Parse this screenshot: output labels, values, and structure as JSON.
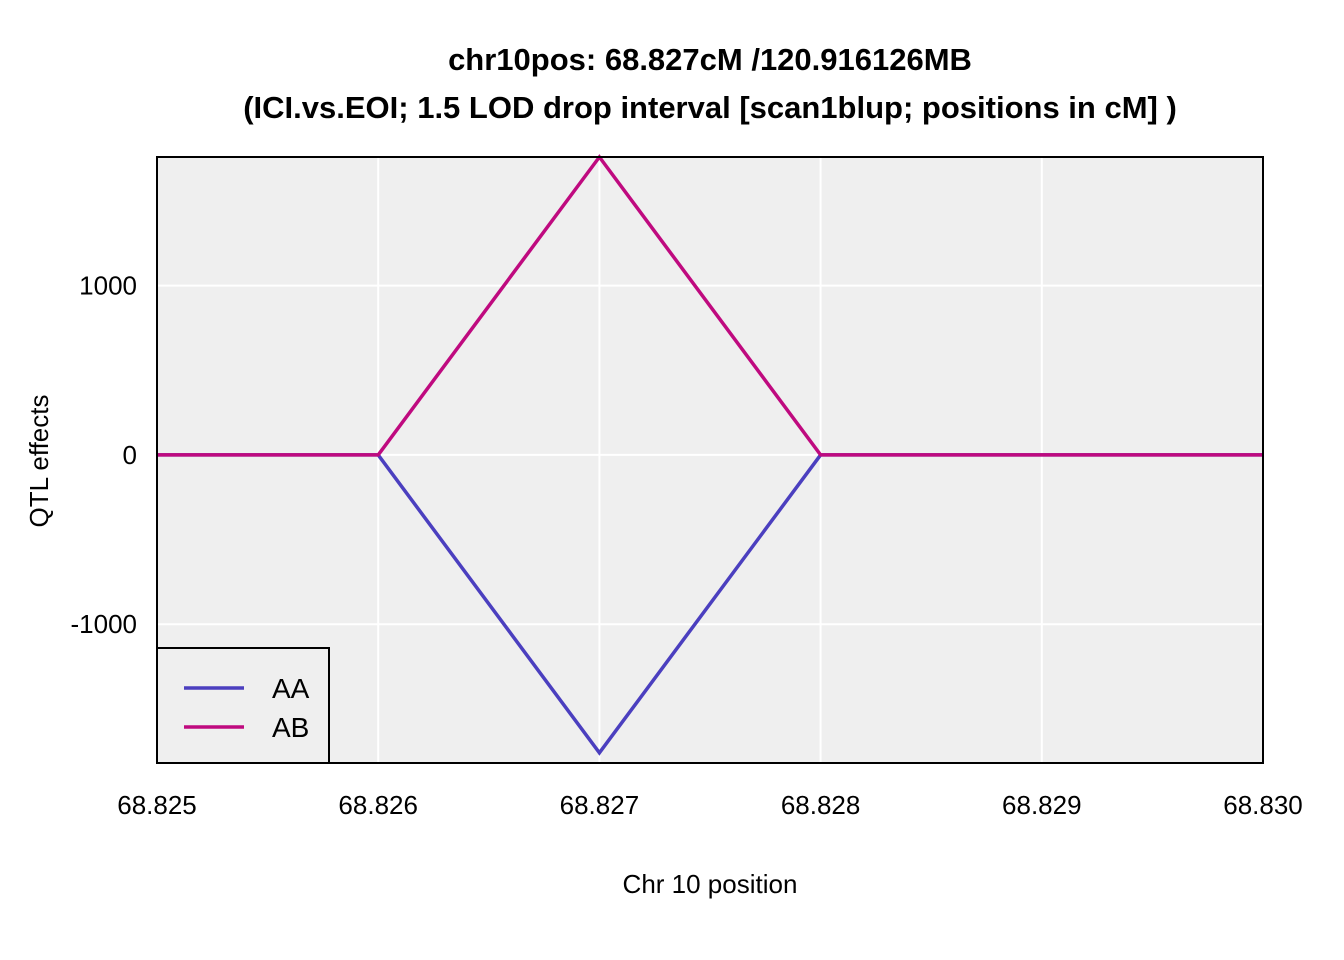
{
  "chart_data": {
    "type": "line",
    "title": "chr10pos: 68.827cM /120.916126MB",
    "subtitle": "(ICI.vs.EOI; 1.5 LOD drop interval [scan1blup; positions in cM] )",
    "xlabel": "Chr 10 position",
    "ylabel": "QTL effects",
    "xlim": [
      68.825,
      68.83
    ],
    "ylim": [
      -1820,
      1760
    ],
    "x_ticks": [
      68.825,
      68.826,
      68.827,
      68.828,
      68.829,
      68.83
    ],
    "x_tick_labels": [
      "68.825",
      "68.826",
      "68.827",
      "68.828",
      "68.829",
      "68.830"
    ],
    "y_ticks": [
      -1000,
      0,
      1000
    ],
    "y_tick_labels": [
      "-1000",
      "0",
      "1000"
    ],
    "grid": true,
    "legend_position": "bottom-left",
    "series": [
      {
        "name": "AA",
        "color": "#4B3FBF",
        "x": [
          68.825,
          68.826,
          68.827,
          68.828,
          68.829,
          68.83
        ],
        "y": [
          0,
          0,
          -1760,
          0,
          0,
          0
        ]
      },
      {
        "name": "AB",
        "color": "#BF0A7F",
        "x": [
          68.825,
          68.826,
          68.827,
          68.828,
          68.829,
          68.83
        ],
        "y": [
          0,
          0,
          1760,
          0,
          0,
          0
        ]
      }
    ],
    "colors": {
      "panel_background": "#EFEFEF",
      "grid": "#FFFFFF",
      "frame": "#000000"
    }
  }
}
